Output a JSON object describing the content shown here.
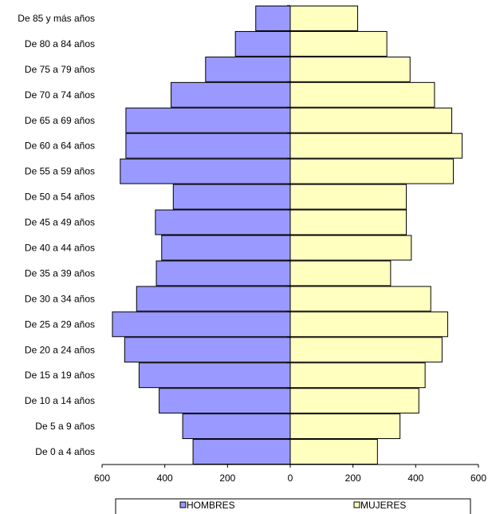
{
  "chart_data": {
    "type": "bar",
    "orientation": "horizontal",
    "layout": "population-pyramid",
    "title": "",
    "xlabel": "",
    "ylabel": "",
    "categories": [
      "De 0 a 4 años",
      "De 5 a 9 años",
      "De 10 a 14 años",
      "De 15 a 19 años",
      "De 20 a 24 años",
      "De 25 a 29 años",
      "De 30 a 34 años",
      "De 35 a 39 años",
      "De 40 a 44 años",
      "De 45 a 49 años",
      "De 50 a 54 años",
      "De 55 a 59 años",
      "De 60 a 64 años",
      "De 65 a 69 años",
      "De 70 a 74 años",
      "De 75 a 79 años",
      "De 80 a 84 años",
      "De 85 y más años"
    ],
    "series": [
      {
        "name": "HOMBRES",
        "side": "left",
        "color": "#9999ff",
        "values": [
          310,
          343,
          418,
          482,
          528,
          567,
          490,
          427,
          410,
          430,
          373,
          542,
          524,
          524,
          380,
          270,
          175,
          110
        ]
      },
      {
        "name": "MUJERES",
        "side": "right",
        "color": "#ffffc0",
        "values": [
          278,
          350,
          410,
          430,
          484,
          502,
          448,
          320,
          386,
          370,
          370,
          520,
          548,
          515,
          460,
          382,
          308,
          215
        ]
      }
    ],
    "xlim": [
      -600,
      600
    ],
    "xticks": [
      -600,
      -400,
      -200,
      0,
      200,
      400,
      600
    ],
    "xtick_labels": [
      "600",
      "400",
      "200",
      "0",
      "200",
      "400",
      "600"
    ],
    "grid": false,
    "legend": "bottom",
    "axis_color": "#000000",
    "bar_outline": "#000000"
  }
}
